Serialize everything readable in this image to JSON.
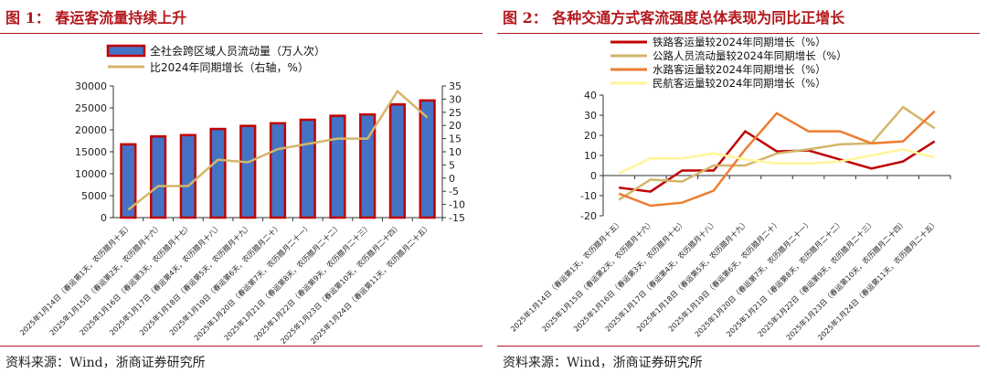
{
  "left": {
    "figure_title": "图 1：   春运客流量持续上升",
    "source": "资料来源：Wind，浙商证券研究所"
  },
  "right": {
    "figure_title": "图 2：   各种交通方式客流强度总体表现为同比正增长",
    "source": "资料来源：Wind，浙商证券研究所"
  },
  "chart_data": [
    {
      "type": "bar",
      "title": "",
      "categories": [
        "2025年1月14日（春运第1天，农历腊月十五）",
        "2025年1月15日（春运第2天，农历腊月十六）",
        "2025年1月16日（春运第3天，农历腊月十七）",
        "2025年1月17日（春运第4天，农历腊月十八）",
        "2025年1月18日（春运第5天，农历腊月十九）",
        "2025年1月19日（春运第6天，农历腊月二十）",
        "2025年1月20日（春运第7天，农历腊月二十一）",
        "2025年1月21日（春运第8天，农历腊月二十二）",
        "2025年1月22日（春运第9天，农历腊月二十三）",
        "2025年1月23日（春运第10天，农历腊月二十四）",
        "2025年1月24日（春运第11天，农历腊月二十五）"
      ],
      "series": [
        {
          "name": "全社会跨区域人员流动量（万人次）",
          "kind": "bar",
          "axis": "left",
          "color": "#4472c4",
          "edge": "#c00000",
          "values": [
            16700,
            18500,
            18800,
            20200,
            20900,
            21500,
            22300,
            23200,
            23500,
            25800,
            26700
          ]
        },
        {
          "name": "比2024年同期增长（右轴，%）",
          "kind": "line",
          "axis": "right",
          "color": "#d4b66a",
          "values": [
            -12,
            -3,
            -3,
            7,
            6,
            11,
            13,
            15,
            15,
            33,
            23
          ]
        }
      ],
      "y_left": {
        "min": 0,
        "max": 30000,
        "step": 5000
      },
      "y_right": {
        "min": -15,
        "max": 35,
        "step": 5
      },
      "legend": "top-left"
    },
    {
      "type": "line",
      "title": "",
      "categories": [
        "2025年1月14日（春运第1天，农历腊月十五）",
        "2025年1月15日（春运第2天，农历腊月十六）",
        "2025年1月16日（春运第3天，农历腊月十七）",
        "2025年1月17日（春运第4天，农历腊月十八）",
        "2025年1月18日（春运第5天，农历腊月十九）",
        "2025年1月19日（春运第6天，农历腊月二十）",
        "2025年1月20日（春运第7天，农历腊月二十一）",
        "2025年1月21日（春运第8天，农历腊月二十二）",
        "2025年1月22日（春运第9天，农历腊月二十三）",
        "2025年1月23日（春运第10天，农历腊月二十四）",
        "2025年1月24日（春运第11天，农历腊月二十五）"
      ],
      "series": [
        {
          "name": "铁路客运量较2024年同期增长（%）",
          "color": "#c00000",
          "values": [
            -6,
            -8,
            2.5,
            2.5,
            22,
            12,
            12.5,
            8,
            3.5,
            7,
            17
          ]
        },
        {
          "name": "公路人员流动量较2024年同期增长（%）",
          "color": "#d4b66a",
          "values": [
            -12,
            -2,
            -3,
            5,
            5,
            11,
            13,
            15.5,
            16,
            34,
            23.5
          ]
        },
        {
          "name": "水路客运量较2024年同期增长（%）",
          "color": "#ed7d31",
          "values": [
            -9,
            -15,
            -13.5,
            -7.5,
            13,
            31,
            22,
            22,
            16,
            17,
            32
          ]
        },
        {
          "name": "民航客运量较2024年同期增长（%）",
          "color": "#fff59a",
          "values": [
            1,
            8.5,
            8.5,
            11,
            8,
            6,
            6,
            7,
            10,
            13,
            9
          ]
        }
      ],
      "y": {
        "min": -20,
        "max": 40,
        "step": 10
      },
      "legend": "top-left"
    }
  ]
}
